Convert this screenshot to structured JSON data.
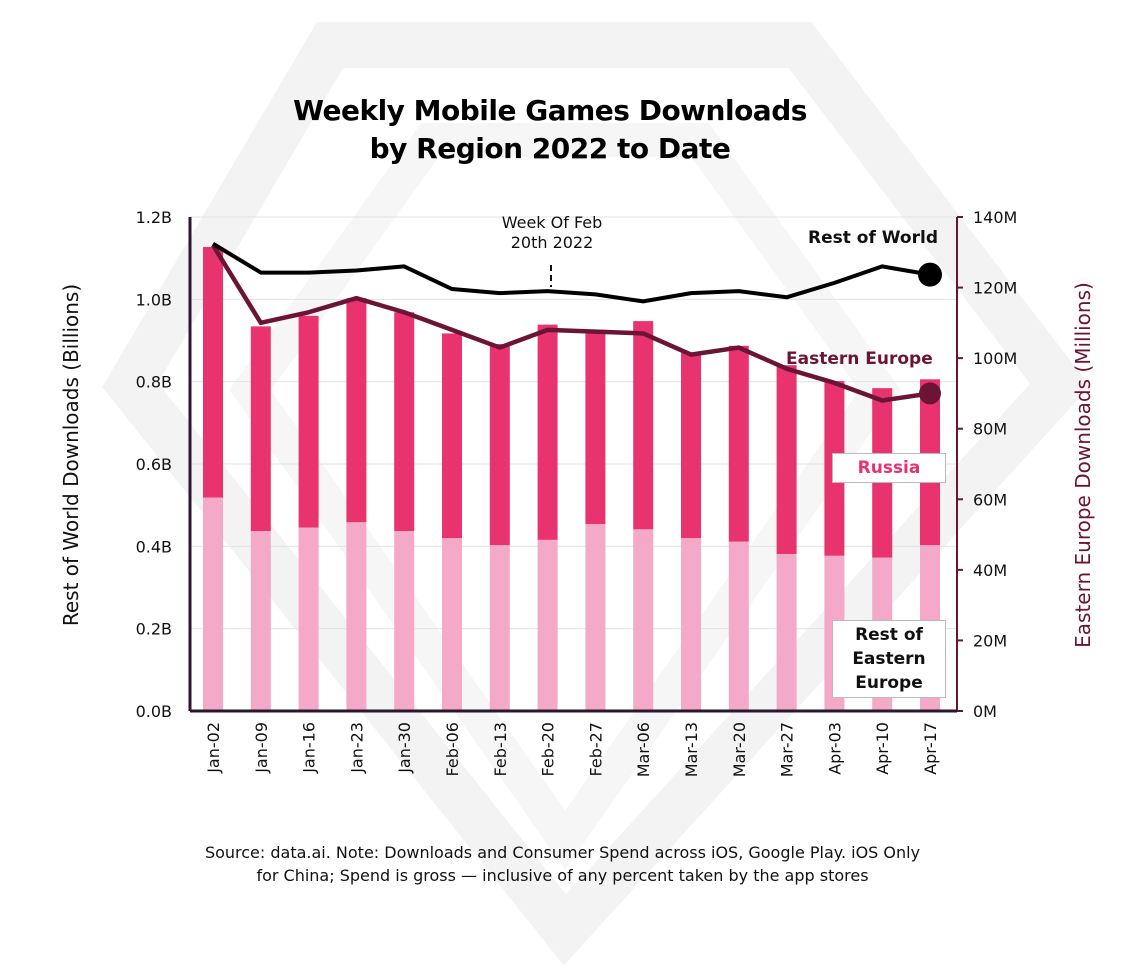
{
  "chart_data": {
    "type": "bar",
    "title": "Weekly Mobile Games Downloads\nby Region 2022 to Date",
    "categories": [
      "Jan-02",
      "Jan-09",
      "Jan-16",
      "Jan-23",
      "Jan-30",
      "Feb-06",
      "Feb-13",
      "Feb-20",
      "Feb-27",
      "Mar-06",
      "Mar-13",
      "Mar-20",
      "Mar-27",
      "Apr-03",
      "Apr-10",
      "Apr-17"
    ],
    "y_left": {
      "label": "Rest of World Downloads (Billions)",
      "ticks": [
        "0.0B",
        "0.2B",
        "0.4B",
        "0.6B",
        "0.8B",
        "1.0B",
        "1.2B"
      ],
      "range": [
        0,
        1.2
      ]
    },
    "y_right": {
      "label": "Eastern Europe  Downloads (Millions)",
      "ticks": [
        "0M",
        "20M",
        "40M",
        "60M",
        "80M",
        "100M",
        "120M",
        "140M"
      ],
      "range": [
        0,
        140
      ]
    },
    "series": [
      {
        "name": "Rest of World",
        "type": "line",
        "axis": "left",
        "color": "#000000",
        "values": [
          1.135,
          1.065,
          1.065,
          1.07,
          1.08,
          1.025,
          1.015,
          1.02,
          1.012,
          0.995,
          1.015,
          1.02,
          1.005,
          1.04,
          1.08,
          1.06
        ]
      },
      {
        "name": "Eastern Europe",
        "type": "line",
        "axis": "right",
        "color": "#6b1436",
        "values": [
          132,
          110,
          113,
          117,
          113,
          108,
          103,
          108,
          107.5,
          107,
          101,
          103,
          97,
          93,
          88,
          90
        ]
      },
      {
        "name": "Russia",
        "type": "bar",
        "axis": "right",
        "color": "#e8336f",
        "values": [
          71,
          58,
          60,
          63.5,
          62,
          58,
          57,
          61,
          55,
          59,
          52.5,
          55.5,
          53.5,
          49.5,
          48,
          47
        ]
      },
      {
        "name": "Rest of Eastern Europe",
        "type": "bar",
        "axis": "right",
        "color": "#f3a9c7",
        "values": [
          60.5,
          51,
          52,
          53.5,
          51,
          49,
          47,
          48.5,
          53,
          51.5,
          49,
          48,
          44.5,
          44,
          43.5,
          47
        ]
      }
    ],
    "annotation": "Week Of Feb\n20th 2022",
    "legend": [
      "Rest of World",
      "Eastern Europe",
      "Russia",
      "Rest of Eastern Europe"
    ],
    "grid": true
  },
  "note": "Source: data.ai. Note: Downloads and Consumer Spend across iOS, Google Play. iOS Only\nfor China; Spend is gross — inclusive of any percent taken by the app stores",
  "labels": {
    "rest_of_world": "Rest of World",
    "eastern_europe": "Eastern Europe",
    "russia": "Russia",
    "rest_of_ee": "Rest of\nEastern\nEurope"
  }
}
